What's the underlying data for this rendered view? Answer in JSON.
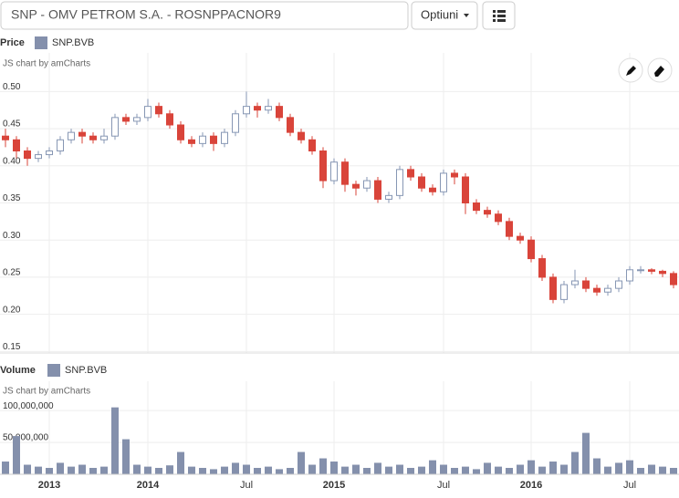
{
  "toolbar": {
    "symbol_text": "SNP - OMV PETROM S.A. - ROSNPPACNOR9",
    "options_button": "Optiuni"
  },
  "chart_data": [
    {
      "type": "candlestick",
      "title": "Price",
      "credit": "JS chart by amCharts",
      "series": [
        {
          "name": "SNP.BVB",
          "color": "#8490ac",
          "up_color": "#8797b4",
          "down_color": "#d9443a",
          "open": [
            0.44,
            0.435,
            0.42,
            0.41,
            0.415,
            0.42,
            0.435,
            0.445,
            0.44,
            0.435,
            0.44,
            0.465,
            0.46,
            0.465,
            0.48,
            0.47,
            0.455,
            0.435,
            0.43,
            0.44,
            0.43,
            0.445,
            0.47,
            0.48,
            0.475,
            0.48,
            0.465,
            0.445,
            0.435,
            0.42,
            0.38,
            0.405,
            0.375,
            0.37,
            0.38,
            0.355,
            0.36,
            0.395,
            0.385,
            0.37,
            0.365,
            0.39,
            0.385,
            0.35,
            0.34,
            0.335,
            0.325,
            0.305,
            0.3,
            0.275,
            0.25,
            0.22,
            0.24,
            0.245,
            0.235,
            0.23,
            0.235,
            0.245,
            0.26,
            0.26,
            0.258,
            0.255
          ],
          "high": [
            0.45,
            0.44,
            0.425,
            0.42,
            0.425,
            0.44,
            0.45,
            0.45,
            0.445,
            0.45,
            0.47,
            0.47,
            0.47,
            0.49,
            0.485,
            0.475,
            0.46,
            0.44,
            0.445,
            0.445,
            0.45,
            0.475,
            0.5,
            0.485,
            0.49,
            0.485,
            0.47,
            0.45,
            0.44,
            0.425,
            0.41,
            0.41,
            0.38,
            0.385,
            0.385,
            0.365,
            0.4,
            0.4,
            0.39,
            0.375,
            0.395,
            0.395,
            0.39,
            0.355,
            0.345,
            0.34,
            0.33,
            0.31,
            0.305,
            0.28,
            0.255,
            0.245,
            0.26,
            0.25,
            0.24,
            0.24,
            0.25,
            0.265,
            0.265,
            0.262,
            0.26,
            0.258
          ],
          "low": [
            0.425,
            0.41,
            0.4,
            0.405,
            0.41,
            0.415,
            0.43,
            0.43,
            0.43,
            0.43,
            0.435,
            0.455,
            0.455,
            0.46,
            0.465,
            0.45,
            0.43,
            0.425,
            0.425,
            0.42,
            0.425,
            0.44,
            0.465,
            0.465,
            0.47,
            0.46,
            0.44,
            0.43,
            0.415,
            0.37,
            0.375,
            0.365,
            0.36,
            0.365,
            0.35,
            0.35,
            0.355,
            0.38,
            0.365,
            0.36,
            0.36,
            0.375,
            0.335,
            0.335,
            0.33,
            0.32,
            0.3,
            0.295,
            0.27,
            0.245,
            0.215,
            0.215,
            0.235,
            0.23,
            0.225,
            0.225,
            0.23,
            0.24,
            0.255,
            0.254,
            0.25,
            0.235
          ],
          "close": [
            0.435,
            0.42,
            0.41,
            0.415,
            0.42,
            0.435,
            0.445,
            0.44,
            0.435,
            0.44,
            0.465,
            0.46,
            0.465,
            0.48,
            0.47,
            0.455,
            0.435,
            0.43,
            0.44,
            0.43,
            0.445,
            0.47,
            0.48,
            0.475,
            0.48,
            0.465,
            0.445,
            0.435,
            0.42,
            0.38,
            0.405,
            0.375,
            0.37,
            0.38,
            0.355,
            0.36,
            0.395,
            0.385,
            0.37,
            0.365,
            0.39,
            0.385,
            0.35,
            0.34,
            0.335,
            0.325,
            0.305,
            0.3,
            0.275,
            0.25,
            0.22,
            0.24,
            0.245,
            0.235,
            0.23,
            0.235,
            0.245,
            0.26,
            0.26,
            0.258,
            0.255,
            0.24
          ]
        }
      ],
      "ylim": [
        0.148,
        0.552
      ],
      "yticks": [
        {
          "value": 0.5,
          "label": "0.50"
        },
        0.45,
        {
          "value": 0.4,
          "label": "0.40"
        },
        0.35,
        {
          "value": 0.3,
          "label": "0.30"
        },
        0.25,
        {
          "value": 0.2,
          "label": "0.20"
        },
        0.15
      ],
      "grid": true
    },
    {
      "type": "bar",
      "title": "Volume",
      "credit": "JS chart by amCharts",
      "categories": [
        null,
        null,
        null,
        null,
        "2013",
        null,
        null,
        null,
        null,
        null,
        null,
        null,
        null,
        "2014",
        null,
        null,
        null,
        null,
        null,
        null,
        null,
        null,
        "Jul",
        null,
        null,
        null,
        null,
        null,
        null,
        null,
        "2015",
        null,
        null,
        null,
        null,
        null,
        null,
        null,
        null,
        null,
        "Jul",
        null,
        null,
        null,
        null,
        null,
        null,
        null,
        "2016",
        null,
        null,
        null,
        null,
        null,
        null,
        null,
        null,
        "Jul",
        null,
        null,
        null,
        null
      ],
      "series": [
        {
          "name": "SNP.BVB",
          "color": "#8490ac",
          "values": [
            20000000,
            60000000,
            15000000,
            12000000,
            10000000,
            18000000,
            12000000,
            15000000,
            10000000,
            12000000,
            105000000,
            55000000,
            15000000,
            12000000,
            10000000,
            14000000,
            35000000,
            12000000,
            10000000,
            8000000,
            12000000,
            18000000,
            15000000,
            10000000,
            12000000,
            8000000,
            10000000,
            35000000,
            15000000,
            25000000,
            20000000,
            12000000,
            15000000,
            10000000,
            18000000,
            12000000,
            15000000,
            10000000,
            12000000,
            22000000,
            15000000,
            10000000,
            12000000,
            8000000,
            18000000,
            12000000,
            10000000,
            15000000,
            22000000,
            12000000,
            20000000,
            15000000,
            35000000,
            65000000,
            25000000,
            12000000,
            18000000,
            22000000,
            10000000,
            15000000,
            12000000,
            10000000
          ]
        }
      ],
      "ylim": [
        0,
        146000000
      ],
      "yticks": [
        0,
        {
          "value": 50000000,
          "label": "50,000,000"
        },
        {
          "value": 100000000,
          "label": "100,000,000"
        }
      ],
      "grid": true
    }
  ]
}
